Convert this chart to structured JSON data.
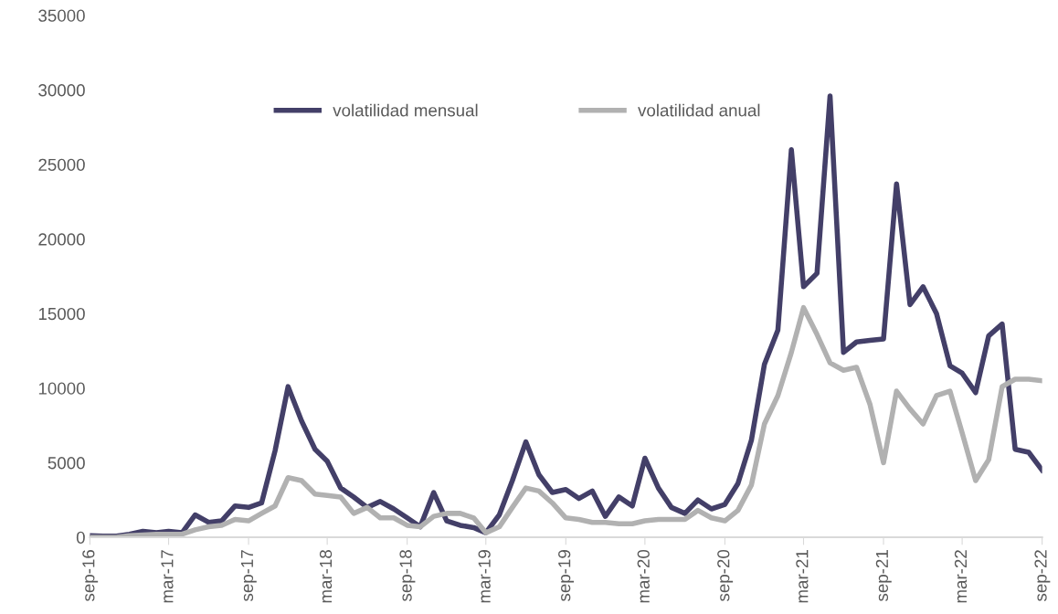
{
  "chart_data": {
    "type": "line",
    "x": [
      "2016-09",
      "2016-10",
      "2016-11",
      "2016-12",
      "2017-01",
      "2017-02",
      "2017-03",
      "2017-04",
      "2017-05",
      "2017-06",
      "2017-07",
      "2017-08",
      "2017-09",
      "2017-10",
      "2017-11",
      "2017-12",
      "2018-01",
      "2018-02",
      "2018-03",
      "2018-04",
      "2018-05",
      "2018-06",
      "2018-07",
      "2018-08",
      "2018-09",
      "2018-10",
      "2018-11",
      "2018-12",
      "2019-01",
      "2019-02",
      "2019-03",
      "2019-04",
      "2019-05",
      "2019-06",
      "2019-07",
      "2019-08",
      "2019-09",
      "2019-10",
      "2019-11",
      "2019-12",
      "2020-01",
      "2020-02",
      "2020-03",
      "2020-04",
      "2020-05",
      "2020-06",
      "2020-07",
      "2020-08",
      "2020-09",
      "2020-10",
      "2020-11",
      "2020-12",
      "2021-01",
      "2021-02",
      "2021-03",
      "2021-04",
      "2021-05",
      "2021-06",
      "2021-07",
      "2021-08",
      "2021-09",
      "2021-10",
      "2021-11",
      "2021-12",
      "2022-01",
      "2022-02",
      "2022-03",
      "2022-04",
      "2022-05",
      "2022-06",
      "2022-07",
      "2022-08",
      "2022-09"
    ],
    "series": [
      {
        "name": "volatilidad mensual",
        "color": "#433f68",
        "values": [
          100,
          80,
          80,
          200,
          400,
          300,
          400,
          300,
          1500,
          1000,
          1100,
          2100,
          2000,
          2300,
          5800,
          10100,
          7800,
          5900,
          5100,
          3300,
          2700,
          2000,
          2400,
          1900,
          1300,
          700,
          3000,
          1100,
          800,
          650,
          300,
          1500,
          3800,
          6400,
          4200,
          3000,
          3200,
          2600,
          3100,
          1400,
          2700,
          2100,
          5300,
          3300,
          2000,
          1600,
          2500,
          1900,
          2200,
          3600,
          6500,
          11600,
          13900,
          26000,
          16800,
          17700,
          29600,
          12400,
          13100,
          13200,
          13300,
          23700,
          15600,
          16800,
          15000,
          11500,
          11000,
          9700,
          13500,
          14300,
          5900,
          5700,
          4500
        ]
      },
      {
        "name": "volatilidad anual",
        "color": "#b1b1b1",
        "values": [
          0,
          0,
          0,
          100,
          150,
          200,
          200,
          200,
          500,
          700,
          800,
          1200,
          1100,
          1600,
          2100,
          4000,
          3800,
          2900,
          2800,
          2700,
          1600,
          2000,
          1300,
          1300,
          800,
          700,
          1400,
          1600,
          1600,
          1300,
          300,
          700,
          2000,
          3300,
          3100,
          2300,
          1300,
          1200,
          1000,
          1000,
          900,
          900,
          1100,
          1200,
          1200,
          1200,
          1800,
          1300,
          1100,
          1800,
          3500,
          7600,
          9500,
          12400,
          15400,
          13600,
          11700,
          11200,
          11400,
          8900,
          5000,
          9800,
          8600,
          7600,
          9500,
          9800,
          7000,
          3800,
          5200,
          10100,
          10600,
          10600,
          10500
        ]
      }
    ],
    "xlim": [
      "2016-09",
      "2022-09"
    ],
    "xticks": [
      {
        "value": "2016-09",
        "label": "sep-16"
      },
      {
        "value": "2017-03",
        "label": "mar-17"
      },
      {
        "value": "2017-09",
        "label": "sep-17"
      },
      {
        "value": "2018-03",
        "label": "mar-18"
      },
      {
        "value": "2018-09",
        "label": "sep-18"
      },
      {
        "value": "2019-03",
        "label": "mar-19"
      },
      {
        "value": "2019-09",
        "label": "sep-19"
      },
      {
        "value": "2020-03",
        "label": "mar-20"
      },
      {
        "value": "2020-09",
        "label": "sep-20"
      },
      {
        "value": "2021-03",
        "label": "mar-21"
      },
      {
        "value": "2021-09",
        "label": "sep-21"
      },
      {
        "value": "2022-03",
        "label": "mar-22"
      },
      {
        "value": "2022-09",
        "label": "sep-22"
      }
    ],
    "ylim": [
      0,
      35000
    ],
    "yticks": [
      0,
      5000,
      10000,
      15000,
      20000,
      25000,
      30000,
      35000
    ],
    "grid": false,
    "legend": "top",
    "line_style": "solid",
    "marker": "none"
  }
}
